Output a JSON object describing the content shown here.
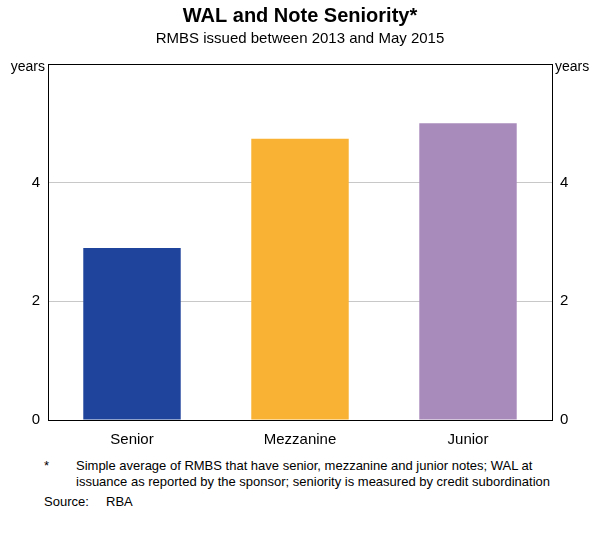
{
  "chart_data": {
    "type": "bar",
    "title": "WAL and Note Seniority*",
    "subtitle": "RMBS issued between 2013 and May 2015",
    "categories": [
      "Senior",
      "Mezzanine",
      "Junior"
    ],
    "values": [
      2.9,
      4.74,
      5.0
    ],
    "colors": [
      "#1f449c",
      "#f9b233",
      "#a98bbb"
    ],
    "y_label": "years",
    "ylim": [
      0,
      6
    ],
    "yticks": [
      0,
      2,
      4
    ],
    "y2_label": "years",
    "y2lim": [
      0,
      6
    ],
    "y2ticks": [
      0,
      2,
      4
    ],
    "grid": true,
    "note": {
      "marker": "*",
      "text": "Simple average of RMBS that have senior, mezzanine and junior notes; WAL at issuance as reported by the sponsor; seniority is measured by credit subordination"
    },
    "source": {
      "label": "Source:",
      "text": "RBA"
    }
  }
}
